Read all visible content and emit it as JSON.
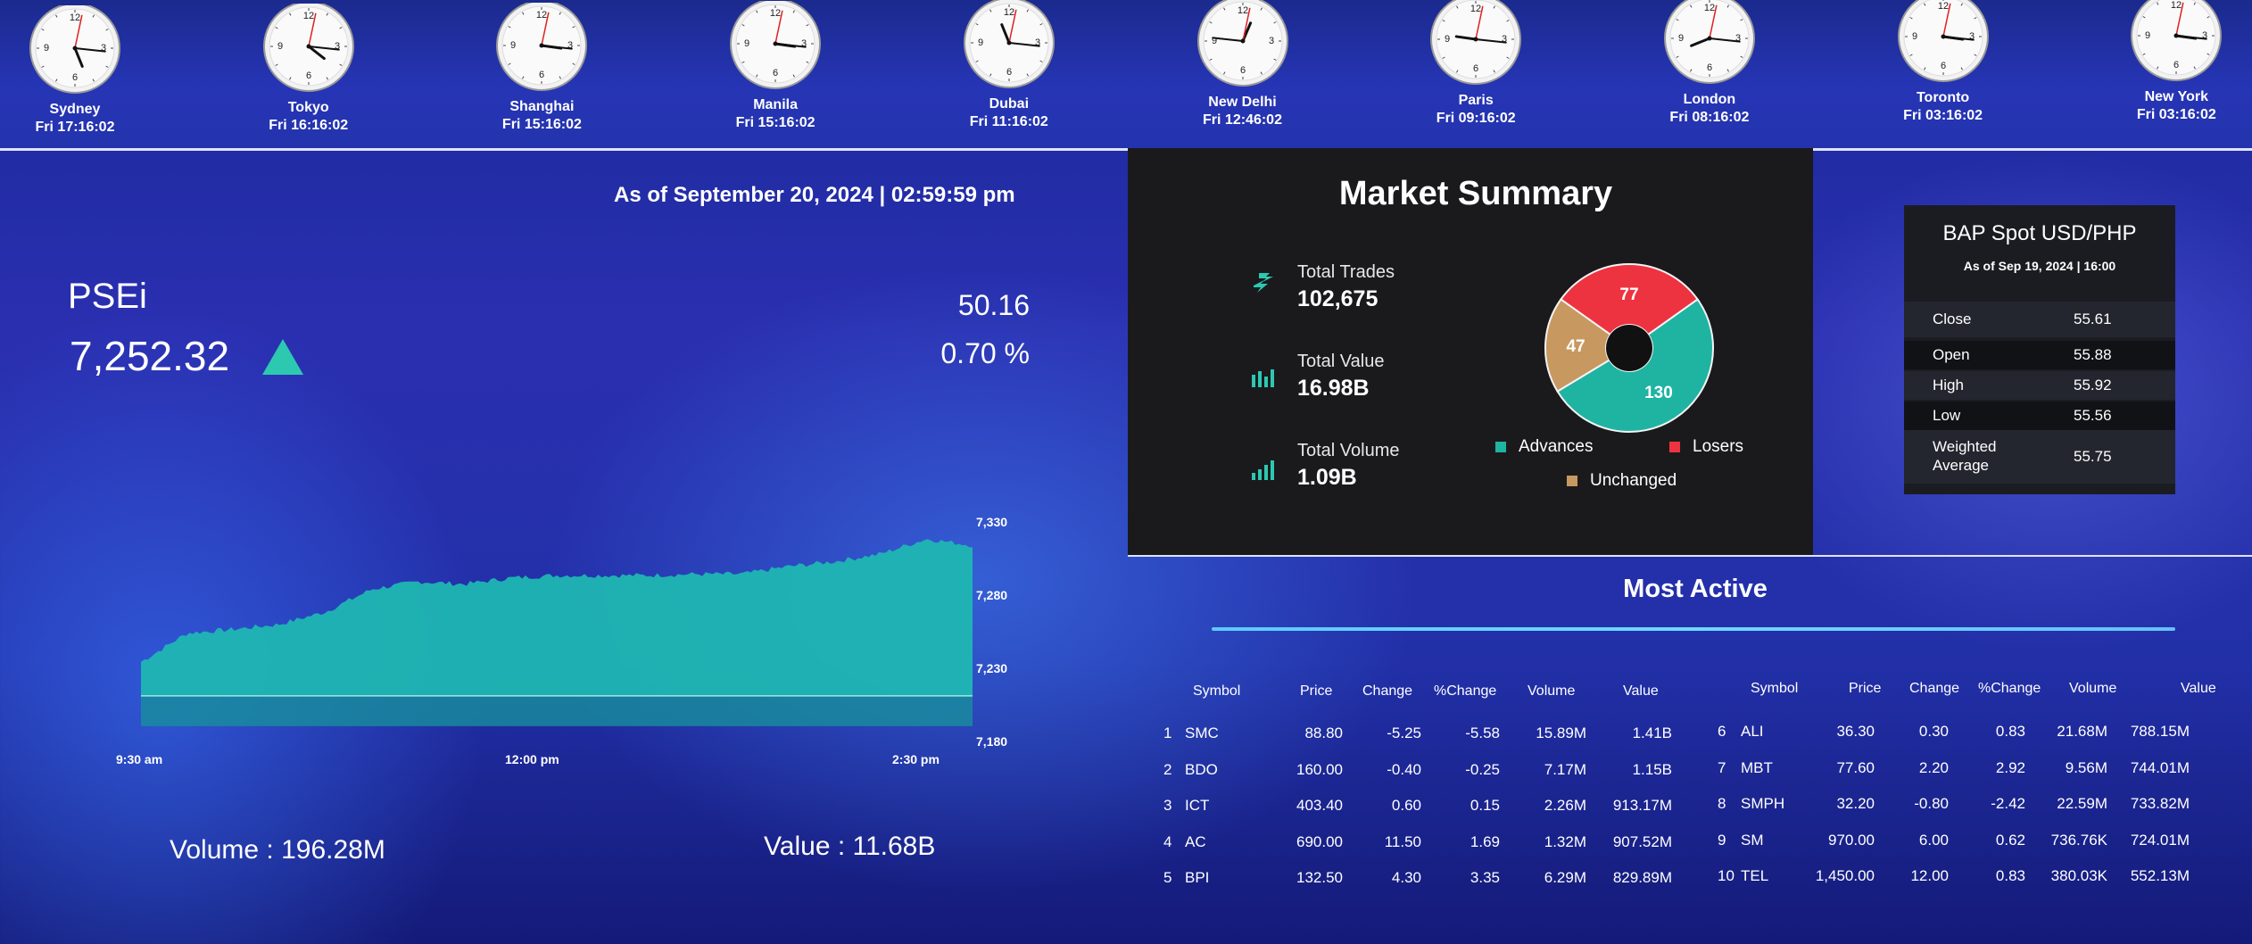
{
  "clocks": [
    {
      "city": "Sydney",
      "time": "Fri 17:16:02",
      "h": 17,
      "m": 16,
      "s": 2
    },
    {
      "city": "Tokyo",
      "time": "Fri 16:16:02",
      "h": 16,
      "m": 16,
      "s": 2
    },
    {
      "city": "Shanghai",
      "time": "Fri 15:16:02",
      "h": 15,
      "m": 16,
      "s": 2
    },
    {
      "city": "Manila",
      "time": "Fri 15:16:02",
      "h": 15,
      "m": 16,
      "s": 2
    },
    {
      "city": "Dubai",
      "time": "Fri 11:16:02",
      "h": 11,
      "m": 16,
      "s": 2
    },
    {
      "city": "New Delhi",
      "time": "Fri 12:46:02",
      "h": 12,
      "m": 46,
      "s": 2
    },
    {
      "city": "Paris",
      "time": "Fri 09:16:02",
      "h": 9,
      "m": 16,
      "s": 2
    },
    {
      "city": "London",
      "time": "Fri 08:16:02",
      "h": 8,
      "m": 16,
      "s": 2
    },
    {
      "city": "Toronto",
      "time": "Fri 03:16:02",
      "h": 3,
      "m": 16,
      "s": 2
    },
    {
      "city": "New York",
      "time": "Fri 03:16:02",
      "h": 3,
      "m": 16,
      "s": 2
    }
  ],
  "clock_numerals": [
    "12",
    "3",
    "6",
    "9"
  ],
  "index": {
    "as_of": "As of September 20, 2024 | 02:59:59 pm",
    "name": "PSEi",
    "value": "7,252.32",
    "change": "50.16",
    "change_pct": "0.70 %",
    "direction": "up",
    "volume": "Volume : 196.28M",
    "value_traded": "Value : 11.68B"
  },
  "chart_data": {
    "type": "area",
    "title": "",
    "x_tick_labels": [
      "9:30 am",
      "12:00 pm",
      "2:30 pm"
    ],
    "y_tick_labels": [
      "7,330",
      "7,280",
      "7,230",
      "7,180"
    ],
    "ylim": [
      7180,
      7340
    ],
    "x": [
      "9:30",
      "9:45",
      "10:00",
      "10:15",
      "10:30",
      "10:45",
      "11:00",
      "11:15",
      "11:30",
      "11:45",
      "12:00",
      "13:00",
      "13:15",
      "13:30",
      "13:45",
      "14:00",
      "14:15",
      "14:30",
      "14:45"
    ],
    "values": [
      7232,
      7255,
      7258,
      7262,
      7272,
      7290,
      7296,
      7294,
      7299,
      7301,
      7301,
      7301,
      7302,
      7302,
      7308,
      7312,
      7318,
      7330,
      7325
    ],
    "baseline": 7205,
    "fill_color": "#1fb6b2"
  },
  "market_summary": {
    "title": "Market Summary",
    "total_trades_label": "Total Trades",
    "total_trades": "102,675",
    "total_value_label": "Total Value",
    "total_value": "16.98B",
    "total_volume_label": "Total Volume",
    "total_volume": "1.09B",
    "pie": [
      {
        "label": "Advances",
        "value": 130,
        "color": "#1fb3a2"
      },
      {
        "label": "Losers",
        "value": 77,
        "color": "#ee3340"
      },
      {
        "label": "Unchanged",
        "value": 47,
        "color": "#c79860"
      }
    ]
  },
  "bap": {
    "title": "BAP Spot USD/PHP",
    "as_of": "As of Sep 19, 2024 | 16:00",
    "rows": [
      {
        "label": "Close",
        "value": "55.61"
      },
      {
        "label": "Open",
        "value": "55.88"
      },
      {
        "label": "High",
        "value": "55.92"
      },
      {
        "label": "Low",
        "value": "55.56"
      },
      {
        "label": "Weighted\nAverage",
        "value": "55.75"
      }
    ]
  },
  "most_active": {
    "title": "Most Active",
    "headers": [
      "Symbol",
      "Price",
      "Change",
      "%Change",
      "Volume",
      "Value"
    ],
    "left": [
      {
        "rank": "1",
        "symbol": "SMC",
        "price": "88.80",
        "change": "-5.25",
        "pct": "-5.58",
        "volume": "15.89M",
        "value": "1.41B"
      },
      {
        "rank": "2",
        "symbol": "BDO",
        "price": "160.00",
        "change": "-0.40",
        "pct": "-0.25",
        "volume": "7.17M",
        "value": "1.15B"
      },
      {
        "rank": "3",
        "symbol": "ICT",
        "price": "403.40",
        "change": "0.60",
        "pct": "0.15",
        "volume": "2.26M",
        "value": "913.17M"
      },
      {
        "rank": "4",
        "symbol": "AC",
        "price": "690.00",
        "change": "11.50",
        "pct": "1.69",
        "volume": "1.32M",
        "value": "907.52M"
      },
      {
        "rank": "5",
        "symbol": "BPI",
        "price": "132.50",
        "change": "4.30",
        "pct": "3.35",
        "volume": "6.29M",
        "value": "829.89M"
      }
    ],
    "right": [
      {
        "rank": "6",
        "symbol": "ALI",
        "price": "36.30",
        "change": "0.30",
        "pct": "0.83",
        "volume": "21.68M",
        "value": "788.15M"
      },
      {
        "rank": "7",
        "symbol": "MBT",
        "price": "77.60",
        "change": "2.20",
        "pct": "2.92",
        "volume": "9.56M",
        "value": "744.01M"
      },
      {
        "rank": "8",
        "symbol": "SMPH",
        "price": "32.20",
        "change": "-0.80",
        "pct": "-2.42",
        "volume": "22.59M",
        "value": "733.82M"
      },
      {
        "rank": "9",
        "symbol": "SM",
        "price": "970.00",
        "change": "6.00",
        "pct": "0.62",
        "volume": "736.76K",
        "value": "724.01M"
      },
      {
        "rank": "10",
        "symbol": "TEL",
        "price": "1,450.00",
        "change": "12.00",
        "pct": "0.83",
        "volume": "380.03K",
        "value": "552.13M"
      }
    ]
  },
  "colors": {
    "accent_teal": "#2dc8b0",
    "loser_red": "#ee3340",
    "panel_dark": "#1a1a1c"
  }
}
